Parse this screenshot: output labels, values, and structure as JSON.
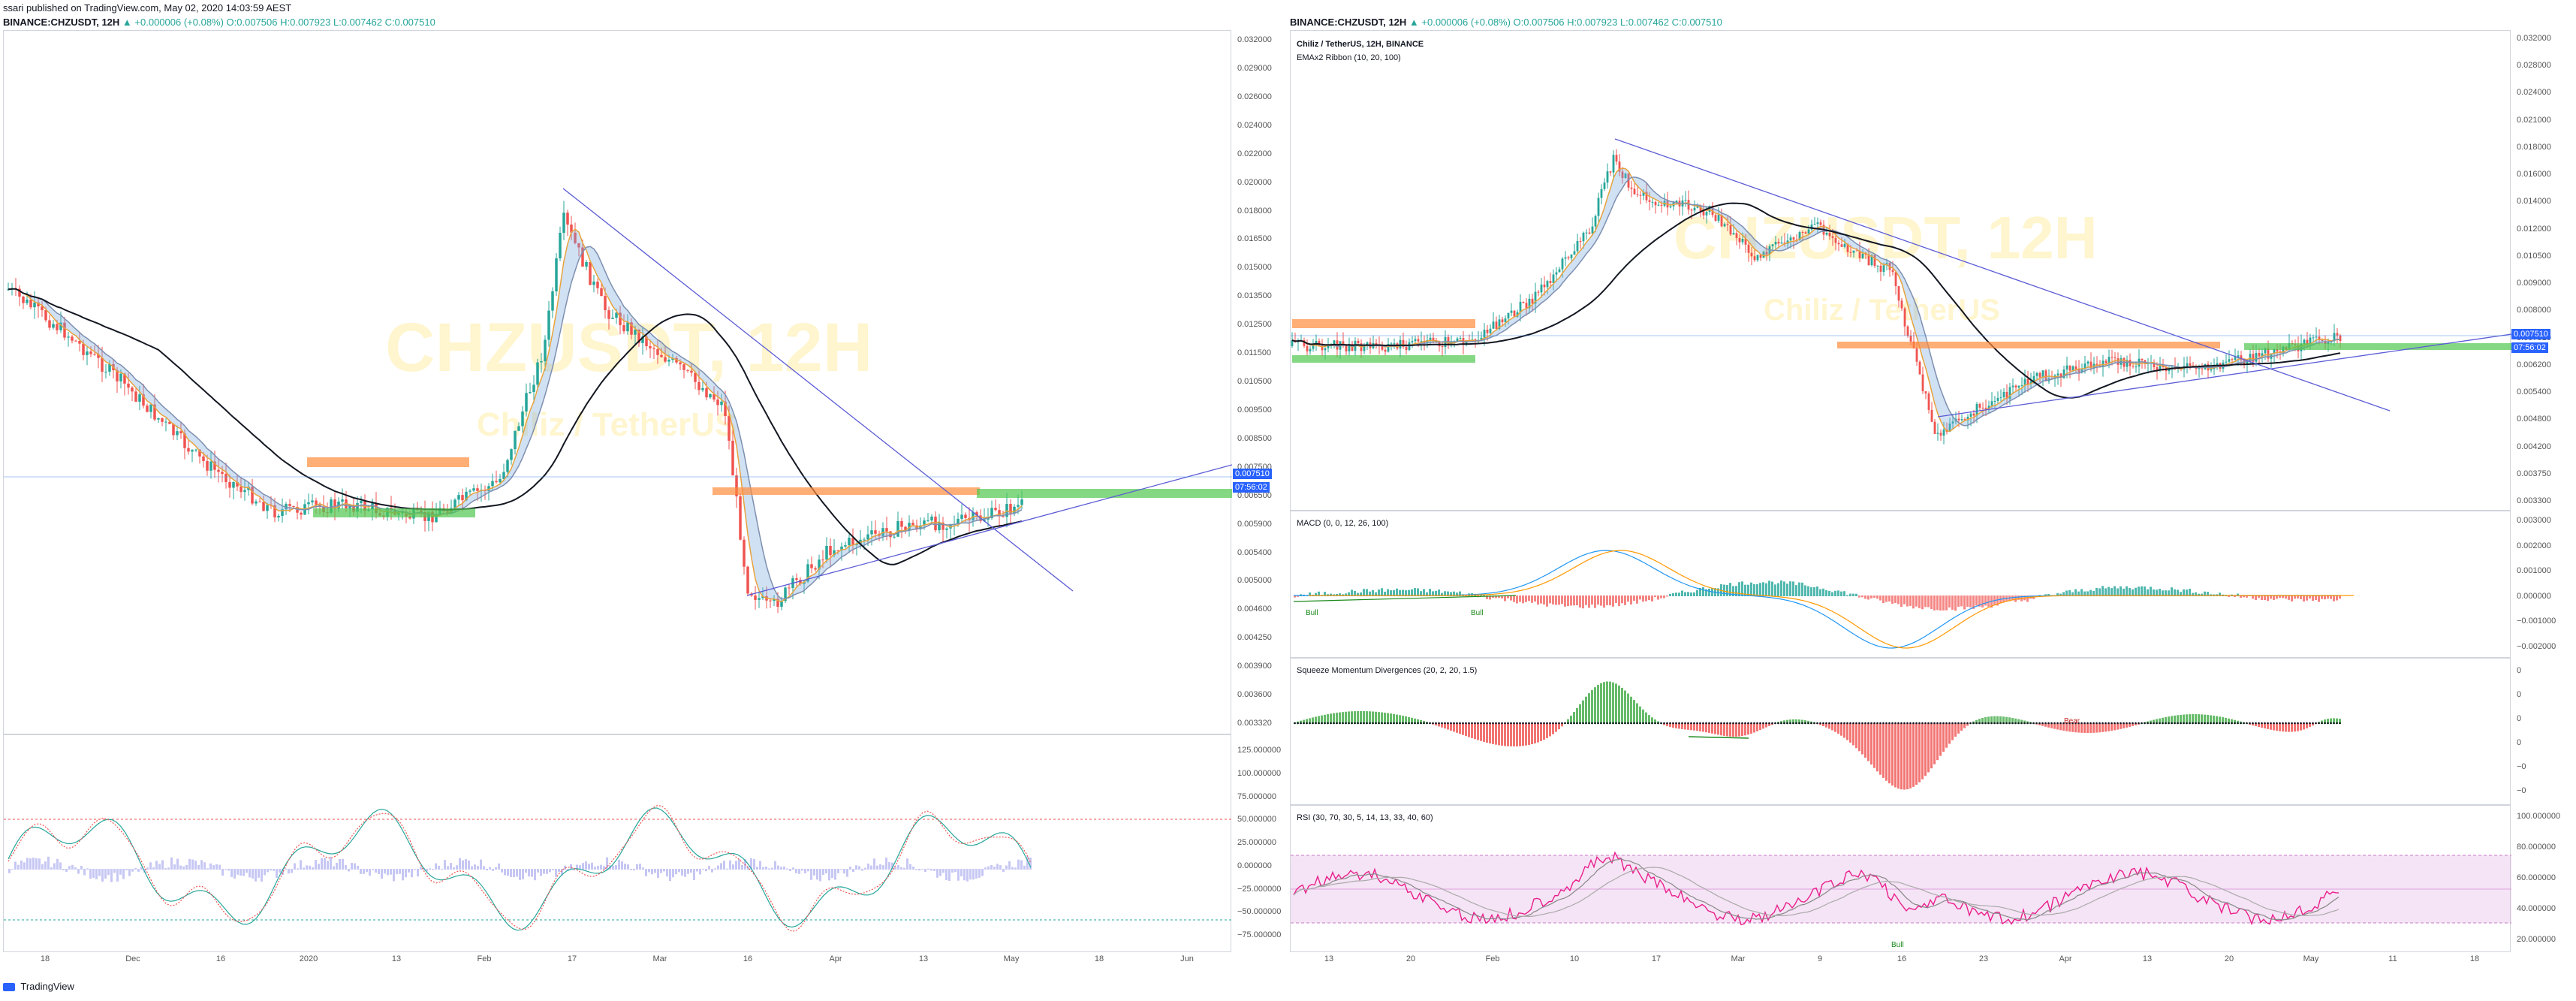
{
  "header": {
    "published": "ssari published on TradingView.com, May 02, 2020 14:03:59 AEST",
    "left_symbol": "BINANCE:CHZUSDT, 12H",
    "right_symbol": "BINANCE:CHZUSDT, 12H",
    "ohlc": "▲ +0.000006 (+0.08%) O:0.007506 H:0.007923 L:0.007462 C:0.007510",
    "price_val": "0.007510"
  },
  "left_chart": {
    "watermark_main": "CHZUSDT, 12H",
    "watermark_sub": "Chiliz / TetherUS",
    "price_axis": [
      "0.032000",
      "0.029000",
      "0.026000",
      "0.024000",
      "0.022000",
      "0.020000",
      "0.018000",
      "0.016500",
      "0.015000",
      "0.013500",
      "0.012500",
      "0.011500",
      "0.010500",
      "0.009500",
      "0.008500",
      "0.007500",
      "0.006500",
      "0.005900",
      "0.005400",
      "0.005000",
      "0.004600",
      "0.004250",
      "0.003900",
      "0.003600",
      "0.003320"
    ],
    "last_price": "0.007510",
    "countdown": "07:56:02",
    "osc_axis": [
      "125.000000",
      "100.000000",
      "75.000000",
      "50.000000",
      "25.000000",
      "0.000000",
      "−25.000000",
      "−50.000000",
      "−75.000000"
    ],
    "time_axis": [
      "18",
      "Dec",
      "16",
      "2020",
      "13",
      "Feb",
      "17",
      "Mar",
      "16",
      "Apr",
      "13",
      "May",
      "18",
      "Jun"
    ]
  },
  "right_chart": {
    "title": "Chiliz / TetherUS, 12H, BINANCE",
    "ema_legend": "EMAx2 Ribbon (10, 20, 100)",
    "watermark_main": "CHZUSDT, 12H",
    "watermark_sub": "Chiliz / TetherUS",
    "price_axis": [
      "0.032000",
      "0.028000",
      "0.024000",
      "0.021000",
      "0.018000",
      "0.016000",
      "0.014000",
      "0.012000",
      "0.010500",
      "0.009000",
      "0.008000",
      "0.007510",
      "0.006200",
      "0.005400",
      "0.004800",
      "0.004200",
      "0.003750",
      "0.003300"
    ],
    "last_price": "0.007510",
    "countdown": "07:56:02",
    "macd_legend": "MACD (0, 0, 12, 26, 100)",
    "macd_axis": [
      "0.003000",
      "0.002000",
      "0.001000",
      "0.000000",
      "−0.001000",
      "−0.002000"
    ],
    "sqz_legend": "Squeeze Momentum Divergences (20, 2, 20, 1.5)",
    "sqz_axis": [
      "0",
      "0",
      "0",
      "0",
      "−0",
      "−0"
    ],
    "rsi_legend": "RSI (30, 70, 30, 5, 14, 13, 33, 40, 60)",
    "rsi_axis": [
      "100.000000",
      "80.000000",
      "60.000000",
      "40.000000",
      "20.000000"
    ],
    "time_axis": [
      "13",
      "20",
      "Feb",
      "10",
      "17",
      "Mar",
      "9",
      "16",
      "23",
      "Apr",
      "13",
      "20",
      "May",
      "11",
      "18"
    ],
    "bull_labels": [
      "Bull",
      "Bull",
      "Bull"
    ],
    "bear_label": "Bear"
  },
  "footer": {
    "brand": "TradingView"
  },
  "colors": {
    "up": "#26a69a",
    "down": "#ef5350",
    "ema_long": "#131722",
    "trend": "#5b5bd6",
    "price_tag": "#2962ff"
  },
  "chart_data": [
    {
      "type": "candlestick",
      "title": "BINANCE:CHZUSDT, 12H",
      "ylim": [
        0.00332,
        0.032
      ],
      "approx_close_path": [
        {
          "t": "Nov 12",
          "close": 0.014
        },
        {
          "t": "Dec 1",
          "close": 0.012
        },
        {
          "t": "Dec 16",
          "close": 0.008
        },
        {
          "t": "Jan 1",
          "close": 0.0072
        },
        {
          "t": "Jan 13",
          "close": 0.0074
        },
        {
          "t": "Feb 1",
          "close": 0.008
        },
        {
          "t": "Feb 12",
          "close": 0.019
        },
        {
          "t": "Feb 17",
          "close": 0.0135
        },
        {
          "t": "Mar 1",
          "close": 0.011
        },
        {
          "t": "Mar 12",
          "close": 0.005
        },
        {
          "t": "Mar 16",
          "close": 0.0052
        },
        {
          "t": "Apr 1",
          "close": 0.0066
        },
        {
          "t": "Apr 13",
          "close": 0.0068
        },
        {
          "t": "Apr 25",
          "close": 0.007
        },
        {
          "t": "May 1",
          "close": 0.00751
        }
      ]
    }
  ]
}
